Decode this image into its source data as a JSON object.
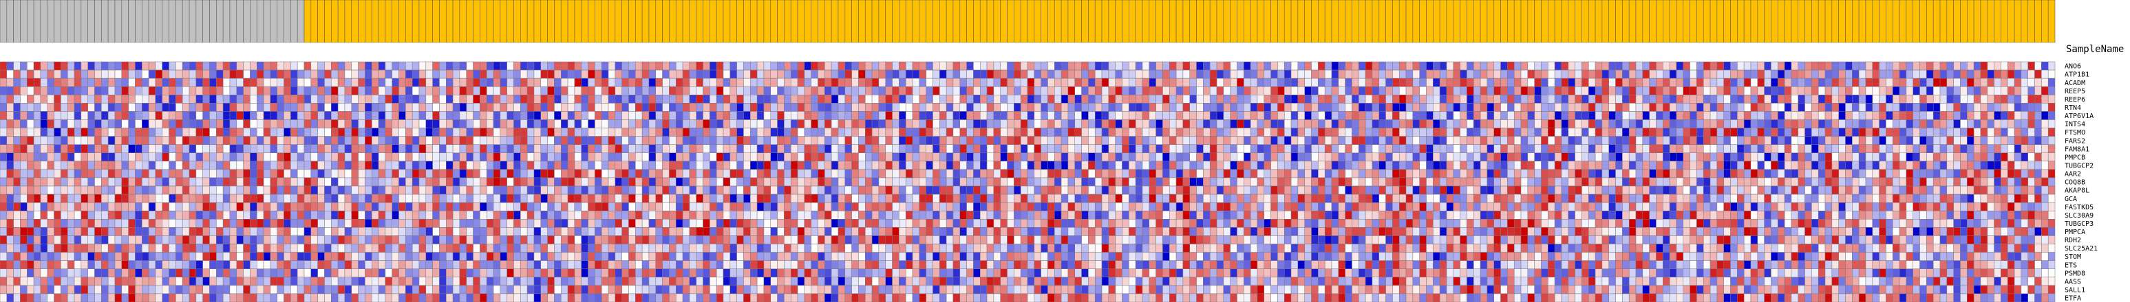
{
  "row_header_label": "SampleName",
  "chart_data": {
    "type": "heatmap",
    "title": "",
    "xlabel": "",
    "ylabel": "",
    "n_columns": 304,
    "n_rows": 29,
    "column_groups": [
      {
        "name": "",
        "count": 45,
        "color": "#c0c0c0"
      },
      {
        "name": "",
        "count": 259,
        "color": "#ffc000"
      }
    ],
    "rows": [
      "ANO6",
      "ATP1B1",
      "ACADM",
      "REEP5",
      "REEP6",
      "RTN4",
      "ATP6V1A",
      "INTS4",
      "FTSMO",
      "FARS2",
      "FAM8A1",
      "PMPCB",
      "TUBGCP2",
      "AAR2",
      "COQ8B",
      "AKAP8L",
      "GCA",
      "FASTKD5",
      "SLC30A9",
      "TUBGCP3",
      "PMPCA",
      "RDH2",
      "SLC25A21",
      "STOM",
      "ETS",
      "PSMD8",
      "AASS",
      "SALL1",
      "ETFA"
    ],
    "color_scale": {
      "low": "#0000cc",
      "mid": "#ffffff",
      "high": "#cc0000",
      "domain": [
        -2,
        0,
        2
      ]
    },
    "grid": true
  }
}
